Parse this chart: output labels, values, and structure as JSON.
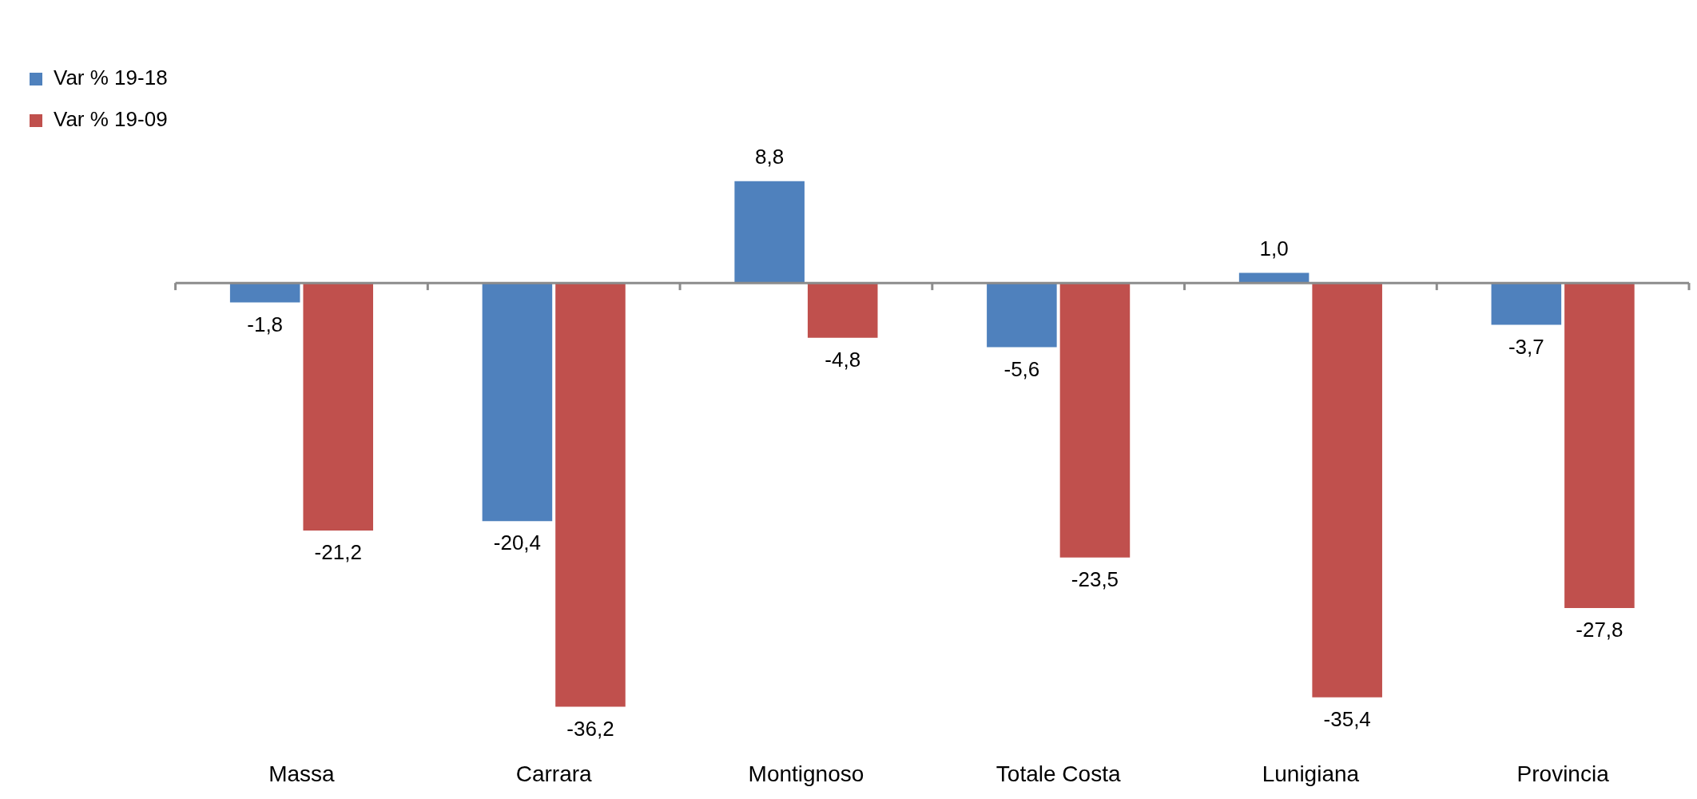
{
  "chart_data": {
    "type": "bar",
    "categories": [
      "Massa",
      "Carrara",
      "Montignoso",
      "Totale Costa",
      "Lunigiana",
      "Provincia"
    ],
    "series": [
      {
        "name": "Var % 19-18",
        "color": "#4f81bd",
        "values": [
          -1.8,
          -20.4,
          8.8,
          -5.6,
          1.0,
          -3.7
        ],
        "value_labels": [
          "-1,8",
          "-20,4",
          "8,8",
          "-5,6",
          "1,0",
          "-3,7"
        ]
      },
      {
        "name": "Var % 19-09",
        "color": "#c0504d",
        "values": [
          -21.2,
          -36.2,
          -4.8,
          -23.5,
          -35.4,
          -27.8
        ],
        "value_labels": [
          "-21,2",
          "-36,2",
          "-4,8",
          "-23,5",
          "-35,4",
          "-27,8"
        ]
      }
    ],
    "legend": "left",
    "grid": false
  }
}
